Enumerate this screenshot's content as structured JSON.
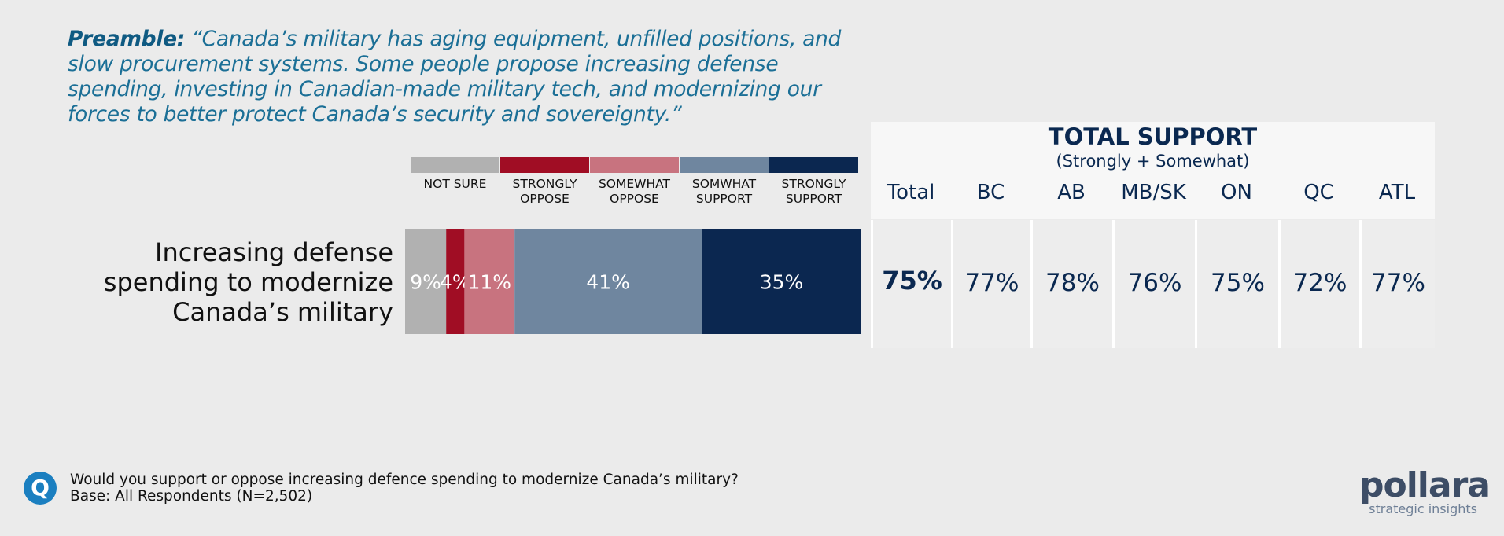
{
  "preamble": {
    "label": "Preamble:",
    "text": "“Canada’s military has aging equipment, unfilled positions, and slow procurement systems. Some people propose increasing defense spending, investing in Canadian-made military tech, and modernizing our forces to better protect Canada’s security and sovereignty.”"
  },
  "chart_data": {
    "type": "bar",
    "orientation": "horizontal-stacked",
    "categories": [
      "Increasing defense spending to modernize Canada’s military"
    ],
    "series": [
      {
        "name": "NOT SURE",
        "values": [
          9
        ],
        "label": "9%",
        "color": "#b1b1b1"
      },
      {
        "name": "STRONGLY OPPOSE",
        "values": [
          4
        ],
        "label": "4%",
        "color": "#a00d24"
      },
      {
        "name": "SOMEWHAT OPPOSE",
        "values": [
          11
        ],
        "label": "11%",
        "color": "#c8737f"
      },
      {
        "name": "SOMWHAT SUPPORT",
        "values": [
          41
        ],
        "label": "41%",
        "color": "#6f869f"
      },
      {
        "name": "STRONGLY SUPPORT",
        "values": [
          35
        ],
        "label": "35%",
        "color": "#0b2750"
      }
    ],
    "legend": [
      {
        "line1": "NOT SURE",
        "line2": ""
      },
      {
        "line1": "STRONGLY",
        "line2": "OPPOSE"
      },
      {
        "line1": "SOMEWHAT",
        "line2": "OPPOSE"
      },
      {
        "line1": "SOMWHAT",
        "line2": "SUPPORT"
      },
      {
        "line1": "STRONGLY",
        "line2": "SUPPORT"
      }
    ],
    "xlim": [
      0,
      100
    ]
  },
  "row_label": [
    "Increasing defense",
    "spending to modernize",
    "Canada’s military"
  ],
  "support_panel": {
    "title": "TOTAL SUPPORT",
    "subtitle": "(Strongly + Somewhat)",
    "columns": [
      {
        "label": "Total",
        "value": "75%"
      },
      {
        "label": "BC",
        "value": "77%"
      },
      {
        "label": "AB",
        "value": "78%"
      },
      {
        "label": "MB/SK",
        "value": "76%"
      },
      {
        "label": "ON",
        "value": "75%"
      },
      {
        "label": "QC",
        "value": "72%"
      },
      {
        "label": "ATL",
        "value": "77%"
      }
    ]
  },
  "footer": {
    "icon_letter": "Q",
    "question": "Would you support or oppose increasing defence spending to modernize Canada’s military?",
    "base": "Base: All Respondents (N=2,502)"
  },
  "logo": {
    "name": "pollara",
    "tagline": "strategic insights"
  }
}
